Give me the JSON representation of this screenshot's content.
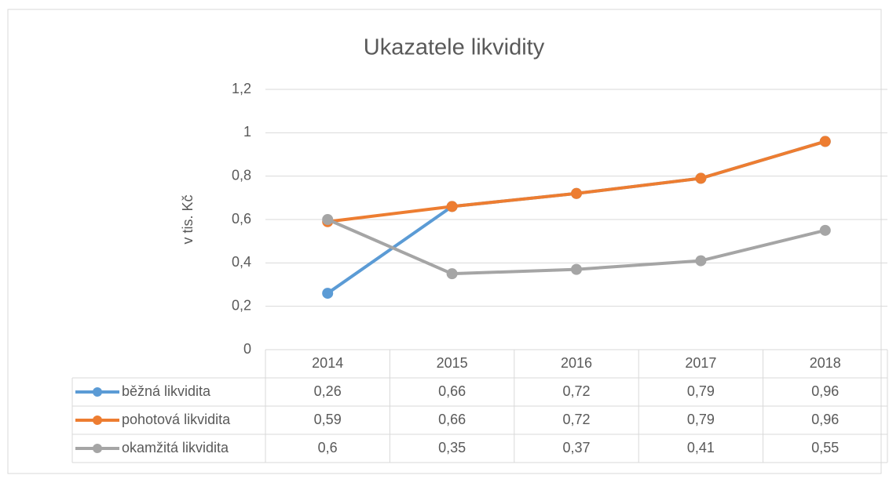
{
  "chart_data": {
    "type": "line",
    "title": "Ukazatele likvidity",
    "y_label": "v tis. Kč",
    "categories": [
      "2014",
      "2015",
      "2016",
      "2017",
      "2018"
    ],
    "series": [
      {
        "name": "běžná likvidita",
        "color": "#5b9bd5",
        "values": [
          0.26,
          0.66,
          0.72,
          0.79,
          0.96
        ],
        "value_labels": [
          "0,26",
          "0,66",
          "0,72",
          "0,79",
          "0,96"
        ]
      },
      {
        "name": "pohotová likvidita",
        "color": "#ed7d31",
        "values": [
          0.59,
          0.66,
          0.72,
          0.79,
          0.96
        ],
        "value_labels": [
          "0,59",
          "0,66",
          "0,72",
          "0,79",
          "0,96"
        ]
      },
      {
        "name": "okamžitá likvidita",
        "color": "#a5a5a5",
        "values": [
          0.6,
          0.35,
          0.37,
          0.41,
          0.55
        ],
        "value_labels": [
          "0,6",
          "0,35",
          "0,37",
          "0,41",
          "0,55"
        ]
      }
    ],
    "ylim": [
      0,
      1.2
    ],
    "yticks": [
      0,
      {
        "value": 0.2,
        "label": "0,2"
      },
      {
        "value": 0.4,
        "label": "0,4"
      },
      {
        "value": 0.6,
        "label": "0,6"
      },
      {
        "value": 0.8,
        "label": "0,8"
      },
      1,
      {
        "value": 1.2,
        "label": "1,2"
      }
    ],
    "grid": true,
    "data_table": true
  }
}
